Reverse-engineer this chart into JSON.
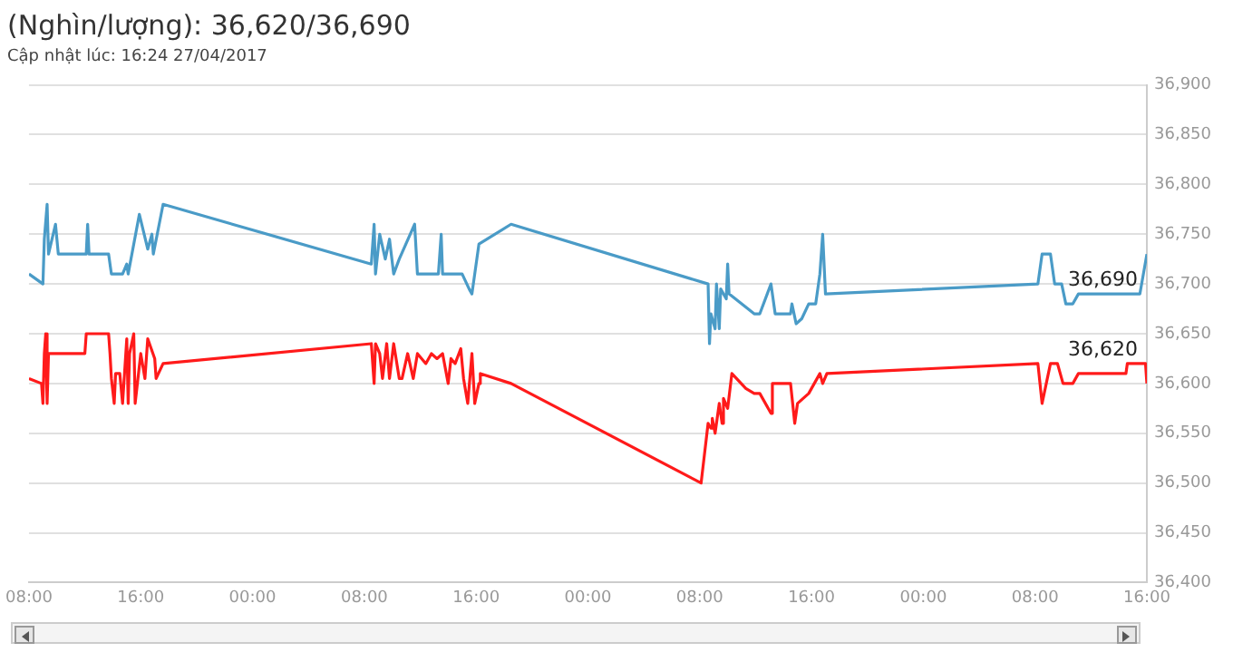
{
  "chart_data": {
    "type": "line",
    "title": "(Nghìn/lượng): 36,620/36,690",
    "subtitle": "Cập nhật lúc: 16:24 27/04/2017",
    "xlim": [
      "2017-04-24T08:00",
      "2017-04-27T16:00"
    ],
    "xticks": [
      {
        "value": "2017-04-24T08:00",
        "label": "08:00"
      },
      {
        "value": "2017-04-24T16:00",
        "label": "16:00"
      },
      {
        "value": "2017-04-25T00:00",
        "label": "00:00"
      },
      {
        "value": "2017-04-25T08:00",
        "label": "08:00"
      },
      {
        "value": "2017-04-25T16:00",
        "label": "16:00"
      },
      {
        "value": "2017-04-26T00:00",
        "label": "00:00"
      },
      {
        "value": "2017-04-26T08:00",
        "label": "08:00"
      },
      {
        "value": "2017-04-26T16:00",
        "label": "16:00"
      },
      {
        "value": "2017-04-27T00:00",
        "label": "00:00"
      },
      {
        "value": "2017-04-27T08:00",
        "label": "08:00"
      },
      {
        "value": "2017-04-27T16:00",
        "label": "16:00"
      }
    ],
    "ylim": [
      36400,
      36900
    ],
    "yticks": [
      {
        "value": 36400,
        "label": "36,400"
      },
      {
        "value": 36450,
        "label": "36,450"
      },
      {
        "value": 36500,
        "label": "36,500"
      },
      {
        "value": 36550,
        "label": "36,550"
      },
      {
        "value": 36600,
        "label": "36,600"
      },
      {
        "value": 36650,
        "label": "36,650"
      },
      {
        "value": 36700,
        "label": "36,700"
      },
      {
        "value": 36750,
        "label": "36,750"
      },
      {
        "value": 36800,
        "label": "36,800"
      },
      {
        "value": 36850,
        "label": "36,850"
      },
      {
        "value": 36900,
        "label": "36,900"
      }
    ],
    "grid": "y",
    "legend": false,
    "annotations": [
      {
        "text": "36,690",
        "x": "2017-04-27T16:00",
        "y": 36690
      },
      {
        "text": "36,620",
        "x": "2017-04-27T16:00",
        "y": 36620
      }
    ],
    "series": [
      {
        "color": "#4a9bc7",
        "x": [
          "2017-04-24T08:00",
          "2017-04-24T09:00",
          "2017-04-24T09:06",
          "2017-04-24T09:18",
          "2017-04-24T09:24",
          "2017-04-24T09:54",
          "2017-04-24T10:06",
          "2017-04-24T12:06",
          "2017-04-24T12:12",
          "2017-04-24T12:18",
          "2017-04-24T13:42",
          "2017-04-24T13:54",
          "2017-04-24T14:42",
          "2017-04-24T15:00",
          "2017-04-24T15:06",
          "2017-04-24T15:54",
          "2017-04-24T16:30",
          "2017-04-24T16:48",
          "2017-04-24T16:54",
          "2017-04-24T17:36",
          "2017-04-25T08:30",
          "2017-04-25T08:42",
          "2017-04-25T08:48",
          "2017-04-25T09:06",
          "2017-04-25T09:30",
          "2017-04-25T09:48",
          "2017-04-25T10:06",
          "2017-04-25T10:30",
          "2017-04-25T11:36",
          "2017-04-25T11:48",
          "2017-04-25T13:18",
          "2017-04-25T13:30",
          "2017-04-25T13:36",
          "2017-04-25T15:00",
          "2017-04-25T15:30",
          "2017-04-25T15:42",
          "2017-04-25T15:54",
          "2017-04-25T16:12",
          "2017-04-25T18:30",
          "2017-04-26T08:36",
          "2017-04-26T08:42",
          "2017-04-26T08:48",
          "2017-04-26T09:06",
          "2017-04-26T09:12",
          "2017-04-26T09:24",
          "2017-04-26T09:30",
          "2017-04-26T09:54",
          "2017-04-26T10:00",
          "2017-04-26T10:06",
          "2017-04-26T11:54",
          "2017-04-26T12:18",
          "2017-04-26T13:06",
          "2017-04-26T13:24",
          "2017-04-26T14:30",
          "2017-04-26T14:36",
          "2017-04-26T14:54",
          "2017-04-26T15:18",
          "2017-04-26T15:48",
          "2017-04-26T16:18",
          "2017-04-26T16:36",
          "2017-04-26T16:48",
          "2017-04-26T17:00",
          "2017-04-27T08:12",
          "2017-04-27T08:30",
          "2017-04-27T09:06",
          "2017-04-27T09:24",
          "2017-04-27T09:54",
          "2017-04-27T10:12",
          "2017-04-27T10:42",
          "2017-04-27T11:06",
          "2017-04-27T15:30",
          "2017-04-27T16:00"
        ],
        "values": [
          36710,
          36700,
          36745,
          36780,
          36730,
          36760,
          36730,
          36730,
          36760,
          36730,
          36730,
          36710,
          36710,
          36720,
          36710,
          36770,
          36735,
          36750,
          36730,
          36780,
          36720,
          36760,
          36710,
          36750,
          36725,
          36745,
          36710,
          36725,
          36760,
          36710,
          36710,
          36750,
          36710,
          36710,
          36695,
          36690,
          36710,
          36740,
          36760,
          36700,
          36640,
          36670,
          36655,
          36700,
          36655,
          36695,
          36685,
          36720,
          36690,
          36670,
          36670,
          36700,
          36670,
          36670,
          36680,
          36660,
          36665,
          36680,
          36680,
          36710,
          36750,
          36690,
          36700,
          36730,
          36730,
          36700,
          36700,
          36680,
          36680,
          36690,
          36690,
          36730
        ]
      },
      {
        "color": "#ff1a1a",
        "x": [
          "2017-04-24T08:00",
          "2017-04-24T08:54",
          "2017-04-24T09:00",
          "2017-04-24T09:06",
          "2017-04-24T09:12",
          "2017-04-24T09:18",
          "2017-04-24T09:24",
          "2017-04-24T12:00",
          "2017-04-24T12:06",
          "2017-04-24T13:42",
          "2017-04-24T13:48",
          "2017-04-24T13:54",
          "2017-04-24T14:06",
          "2017-04-24T14:12",
          "2017-04-24T14:30",
          "2017-04-24T14:42",
          "2017-04-24T15:00",
          "2017-04-24T15:06",
          "2017-04-24T15:12",
          "2017-04-24T15:30",
          "2017-04-24T15:36",
          "2017-04-24T16:00",
          "2017-04-24T16:18",
          "2017-04-24T16:30",
          "2017-04-24T17:00",
          "2017-04-24T17:06",
          "2017-04-24T17:36",
          "2017-04-25T08:30",
          "2017-04-25T08:42",
          "2017-04-25T08:48",
          "2017-04-25T09:06",
          "2017-04-25T09:18",
          "2017-04-25T09:36",
          "2017-04-25T09:48",
          "2017-04-25T10:06",
          "2017-04-25T10:30",
          "2017-04-25T10:42",
          "2017-04-25T11:06",
          "2017-04-25T11:30",
          "2017-04-25T11:48",
          "2017-04-25T12:24",
          "2017-04-25T12:48",
          "2017-04-25T13:12",
          "2017-04-25T13:36",
          "2017-04-25T14:00",
          "2017-04-25T14:12",
          "2017-04-25T14:30",
          "2017-04-25T14:54",
          "2017-04-25T15:06",
          "2017-04-25T15:24",
          "2017-04-25T15:42",
          "2017-04-25T15:54",
          "2017-04-25T16:12",
          "2017-04-25T16:18",
          "2017-04-25T18:30",
          "2017-04-26T08:06",
          "2017-04-26T08:36",
          "2017-04-26T08:48",
          "2017-04-26T08:54",
          "2017-04-26T09:06",
          "2017-04-26T09:24",
          "2017-04-26T09:36",
          "2017-04-26T09:42",
          "2017-04-26T10:00",
          "2017-04-26T10:18",
          "2017-04-26T11:18",
          "2017-04-26T11:54",
          "2017-04-26T12:18",
          "2017-04-26T13:06",
          "2017-04-26T13:12",
          "2017-04-26T14:30",
          "2017-04-26T14:48",
          "2017-04-26T15:00",
          "2017-04-26T15:48",
          "2017-04-26T16:12",
          "2017-04-26T16:36",
          "2017-04-26T16:48",
          "2017-04-26T17:06",
          "2017-04-27T08:12",
          "2017-04-27T08:30",
          "2017-04-27T09:06",
          "2017-04-27T09:36",
          "2017-04-27T10:00",
          "2017-04-27T10:42",
          "2017-04-27T11:06",
          "2017-04-27T14:30",
          "2017-04-27T14:36",
          "2017-04-27T15:54",
          "2017-04-27T16:00"
        ],
        "values": [
          36605,
          36600,
          36580,
          36630,
          36650,
          36580,
          36630,
          36630,
          36650,
          36650,
          36630,
          36605,
          36580,
          36610,
          36610,
          36580,
          36645,
          36580,
          36630,
          36650,
          36580,
          36630,
          36605,
          36645,
          36625,
          36605,
          36620,
          36640,
          36600,
          36640,
          36630,
          36605,
          36640,
          36605,
          36640,
          36605,
          36605,
          36630,
          36605,
          36630,
          36620,
          36630,
          36625,
          36630,
          36600,
          36625,
          36620,
          36635,
          36605,
          36580,
          36630,
          36580,
          36600,
          36610,
          36600,
          36500,
          36560,
          36555,
          36565,
          36550,
          36580,
          36560,
          36585,
          36575,
          36610,
          36595,
          36590,
          36590,
          36570,
          36600,
          36600,
          36560,
          36580,
          36590,
          36600,
          36610,
          36600,
          36610,
          36620,
          36580,
          36620,
          36620,
          36600,
          36600,
          36610,
          36610,
          36620,
          36620,
          36600
        ]
      }
    ]
  }
}
